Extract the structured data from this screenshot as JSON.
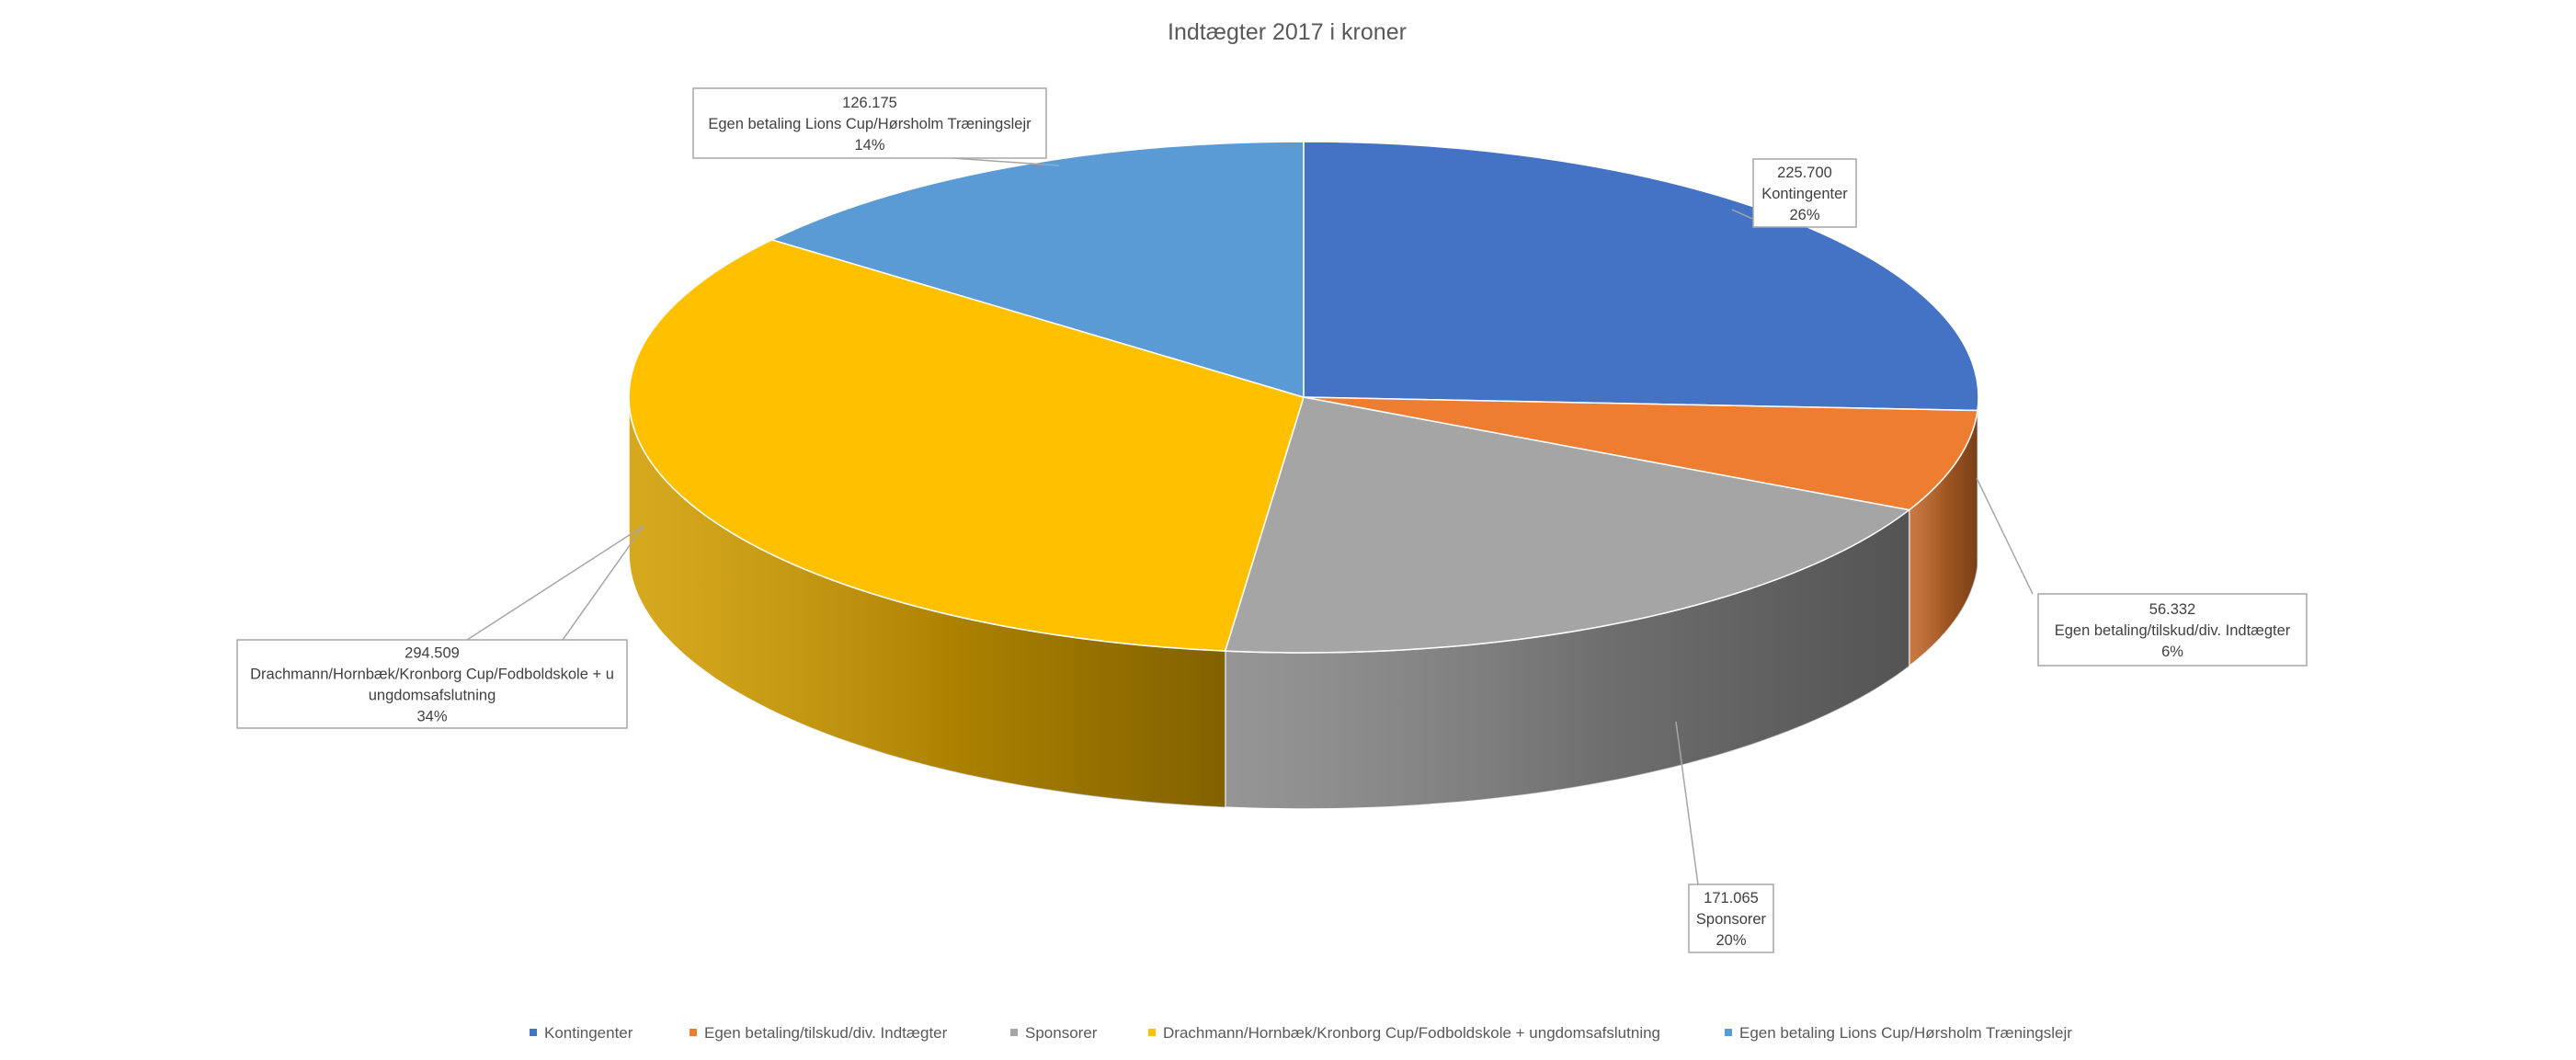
{
  "chart_data": {
    "type": "pie",
    "title": "Indtægter 2017 i kroner",
    "legend_position": "bottom",
    "slices": [
      {
        "name": "Kontingenter",
        "value": 225700,
        "value_label": "225.700",
        "percent_label": "26%",
        "color": "#4472C4"
      },
      {
        "name": "Egen betaling/tilskud/div. Indtægter",
        "value": 56332,
        "value_label": "56.332",
        "percent_label": "6%",
        "color": "#ED7D31"
      },
      {
        "name": "Sponsorer",
        "value": 171065,
        "value_label": "171.065",
        "percent_label": "20%",
        "color": "#A5A5A5"
      },
      {
        "name": "Drachmann/Hornbæk/Kronborg Cup/Fodboldskole + ungdomsafslutning",
        "value": 294509,
        "value_label": "294.509",
        "percent_label": "34%",
        "color": "#FFC000"
      },
      {
        "name": "Egen betaling Lions Cup/Hørsholm Træningslejr",
        "value": 126175,
        "value_label": "126.175",
        "percent_label": "14%",
        "color": "#5B9BD5"
      }
    ]
  }
}
